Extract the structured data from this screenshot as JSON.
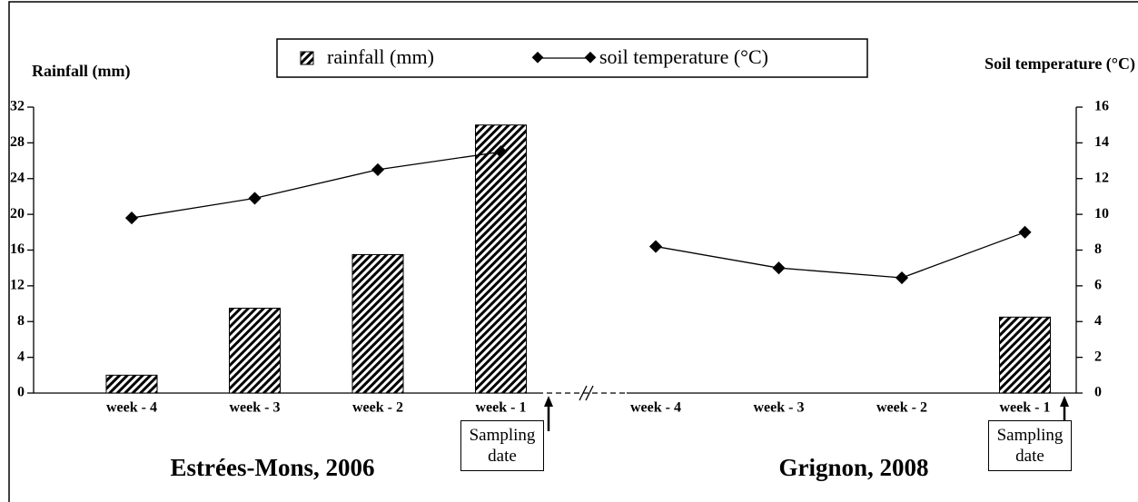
{
  "chart_data": {
    "type": "bar-line",
    "ylabel": "Rainfall (mm)",
    "y2label": "Soil temperature (°C)",
    "ylim": [
      0,
      32
    ],
    "yticks": [
      0,
      4,
      8,
      12,
      16,
      20,
      24,
      28,
      32
    ],
    "y2lim": [
      0,
      16
    ],
    "y2ticks": [
      0,
      2,
      4,
      6,
      8,
      10,
      12,
      14,
      16
    ],
    "series": [
      {
        "name": "rainfall (mm)",
        "color": "#000000"
      },
      {
        "name": "soil temperature (°C)",
        "color": "#000000",
        "axis": "y2"
      }
    ],
    "panels": [
      {
        "title": "Estrées-Mons, 2006",
        "note": "Sampling date",
        "categories": [
          "week - 4",
          "week - 3",
          "week - 2",
          "week - 1"
        ],
        "series": [
          {
            "values": [
              2,
              9.5,
              15.5,
              30
            ]
          },
          {
            "values": [
              9.8,
              10.9,
              12.5,
              13.5
            ]
          }
        ]
      },
      {
        "title": "Grignon, 2008",
        "note": "Sampling date",
        "categories": [
          "week - 4",
          "week - 3",
          "week - 2",
          "week - 1"
        ],
        "series": [
          {
            "values": [
              0,
              0,
              0,
              8.5
            ]
          },
          {
            "values": [
              8.2,
              7.0,
              6.45,
              9.0
            ]
          }
        ]
      }
    ]
  }
}
